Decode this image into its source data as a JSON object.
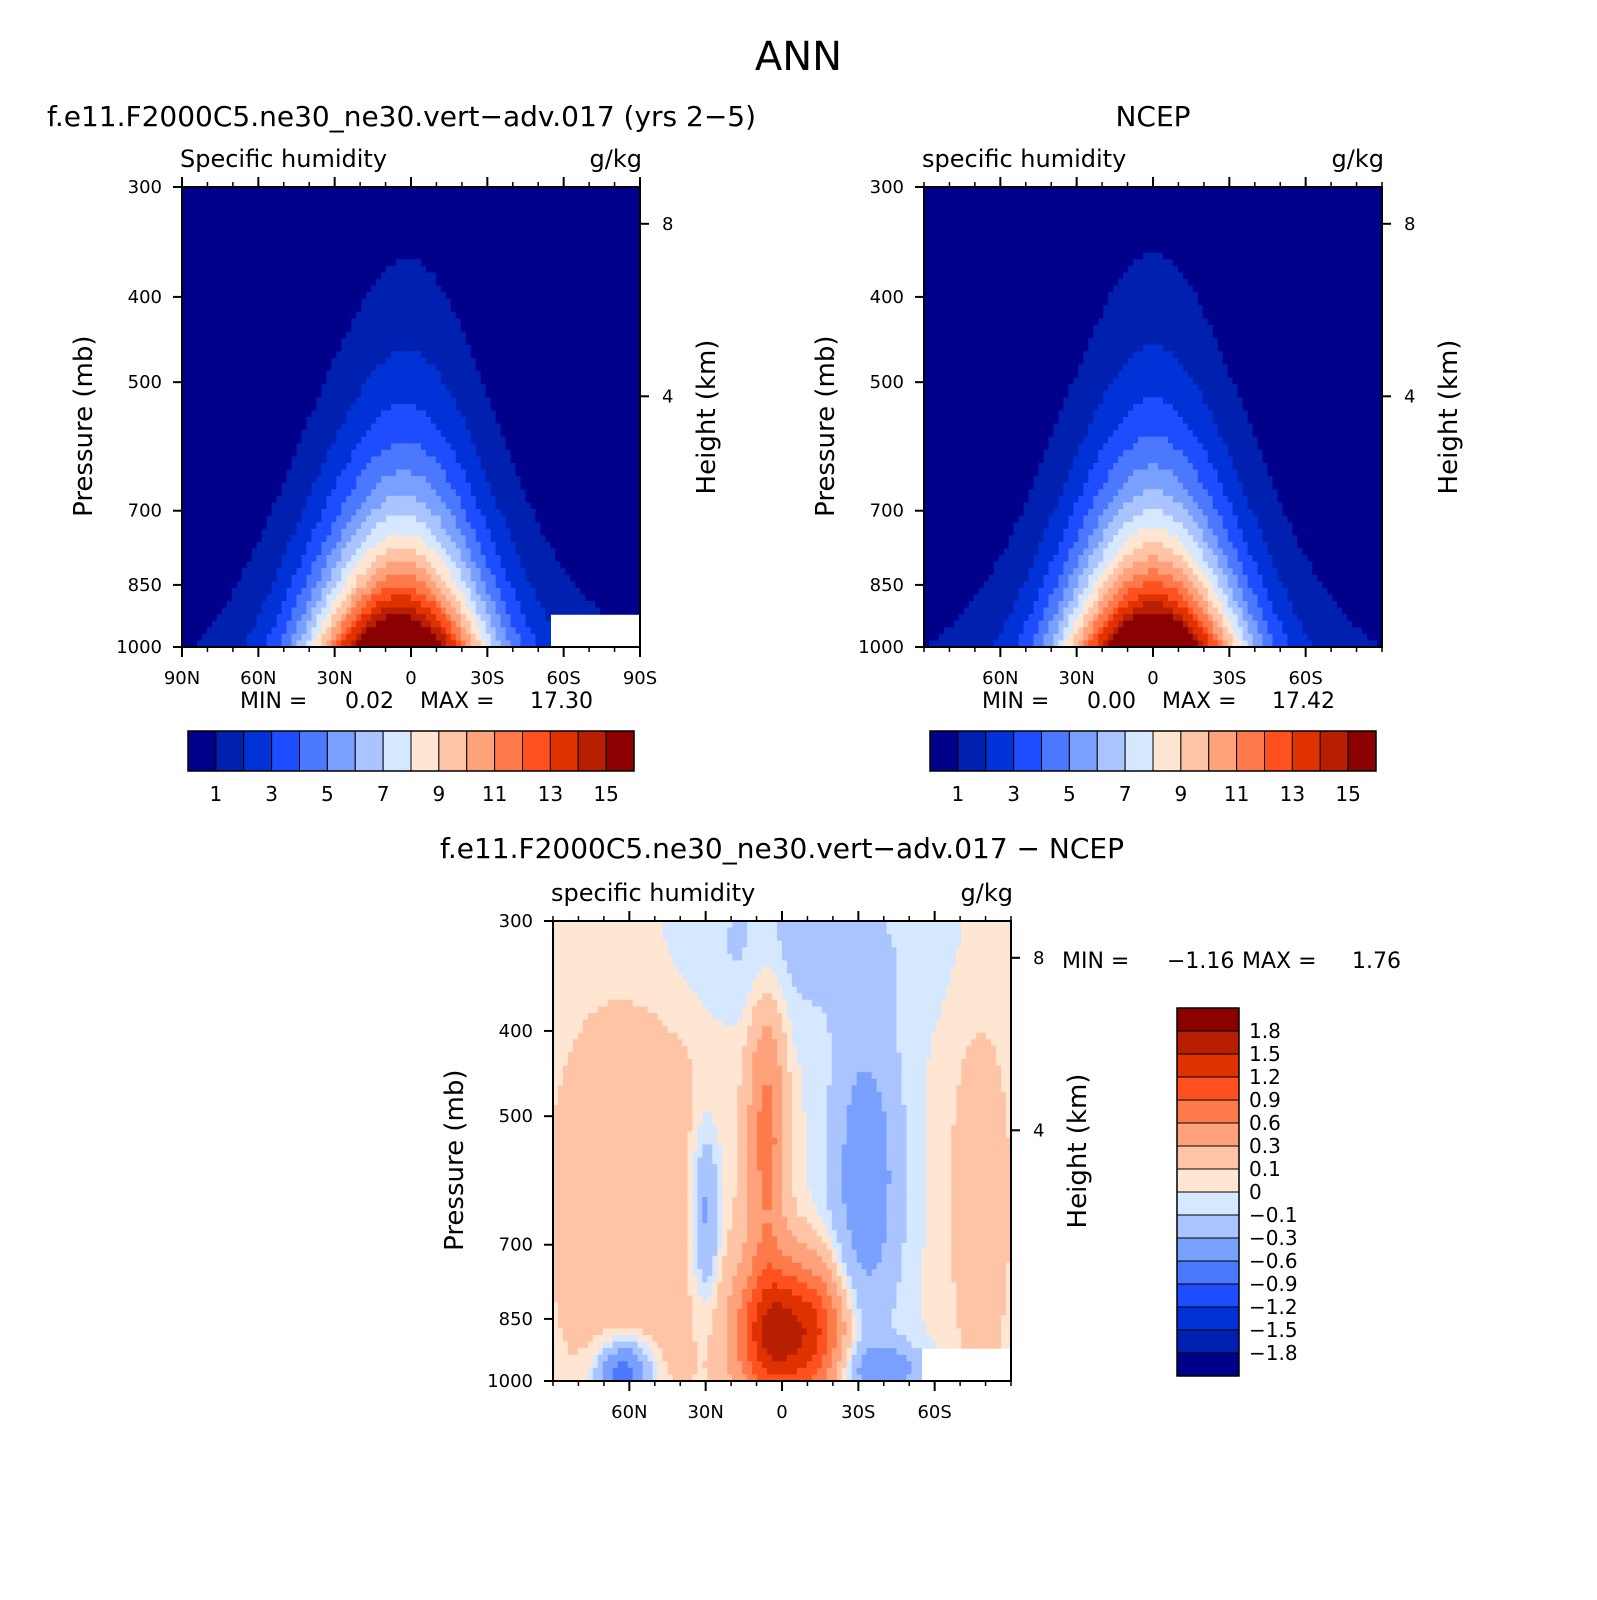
{
  "page": {
    "title": "ANN"
  },
  "chart_data": [
    {
      "type": "contour",
      "case_title": "f.e11.F2000C5.ne30_ne30.vert−adv.017 (yrs 2−5)",
      "left_label": "Specific humidity",
      "right_label": "g/kg",
      "ylabel": "Pressure (mb)",
      "y2label": "Height (km)",
      "xticks": [
        "90N",
        "60N",
        "30N",
        "0",
        "30S",
        "60S",
        "90S"
      ],
      "yticks": [
        "300",
        "400",
        "500",
        "700",
        "850",
        "1000"
      ],
      "y2ticks": [
        "8",
        "4"
      ],
      "min_label": "MIN =",
      "min_value": "0.02",
      "max_label": "MAX =",
      "max_value": "17.30",
      "levels": [
        1,
        2,
        3,
        4,
        5,
        6,
        7,
        8,
        9,
        10,
        11,
        12,
        13,
        14,
        15
      ],
      "colorbar_labels": [
        "1",
        "3",
        "5",
        "7",
        "9",
        "11",
        "13",
        "15"
      ],
      "colors": [
        "#00008b",
        "#0020b0",
        "#0032d8",
        "#1e4cff",
        "#4b78ff",
        "#7aa0ff",
        "#a9c4ff",
        "#d6e8ff",
        "#ffe6d2",
        "#ffc4a6",
        "#ffa27c",
        "#ff7a4a",
        "#ff5020",
        "#e03200",
        "#b81e00",
        "#8b0000"
      ],
      "peak_value": 17.3,
      "peak_lat": -5,
      "equator_value": 17.0,
      "missing_region": "south-polar-surface"
    },
    {
      "type": "contour",
      "case_title": "NCEP",
      "left_label": "specific humidity",
      "right_label": "g/kg",
      "ylabel": "Pressure (mb)",
      "y2label": "Height (km)",
      "xticks": [
        "60N",
        "30N",
        "0",
        "30S",
        "60S"
      ],
      "yticks": [
        "300",
        "400",
        "500",
        "700",
        "850",
        "1000"
      ],
      "y2ticks": [
        "8",
        "4"
      ],
      "min_label": "MIN =",
      "min_value": "0.00",
      "max_label": "MAX =",
      "max_value": "17.42",
      "levels": [
        1,
        2,
        3,
        4,
        5,
        6,
        7,
        8,
        9,
        10,
        11,
        12,
        13,
        14,
        15
      ],
      "colorbar_labels": [
        "1",
        "3",
        "5",
        "7",
        "9",
        "11",
        "13",
        "15"
      ],
      "colors": [
        "#00008b",
        "#0020b0",
        "#0032d8",
        "#1e4cff",
        "#4b78ff",
        "#7aa0ff",
        "#a9c4ff",
        "#d6e8ff",
        "#ffe6d2",
        "#ffc4a6",
        "#ffa27c",
        "#ff7a4a",
        "#ff5020",
        "#e03200",
        "#b81e00",
        "#8b0000"
      ],
      "peak_value": 17.42,
      "peak_lat": 0,
      "equator_value": 17.4
    },
    {
      "type": "contour",
      "case_title": "f.e11.F2000C5.ne30_ne30.vert−adv.017 − NCEP",
      "left_label": "specific humidity",
      "right_label": "g/kg",
      "ylabel": "Pressure (mb)",
      "y2label": "Height (km)",
      "xticks": [
        "60N",
        "30N",
        "0",
        "30S",
        "60S"
      ],
      "yticks": [
        "300",
        "400",
        "500",
        "700",
        "850",
        "1000"
      ],
      "y2ticks": [
        "8",
        "4"
      ],
      "min_label": "MIN =",
      "min_value": "−1.16",
      "max_label": "MAX =",
      "max_value": "1.76",
      "levels": [
        -1.8,
        -1.5,
        -1.2,
        -0.9,
        -0.6,
        -0.3,
        -0.1,
        0,
        0.1,
        0.3,
        0.6,
        0.9,
        1.2,
        1.5,
        1.8
      ],
      "colorbar_labels": [
        "1.8",
        "1.5",
        "1.2",
        "0.9",
        "0.6",
        "0.3",
        "0.1",
        "0",
        "−0.1",
        "−0.3",
        "−0.6",
        "−0.9",
        "−1.2",
        "−1.5",
        "−1.8"
      ],
      "colors": [
        "#8b0000",
        "#b81e00",
        "#e03200",
        "#ff5020",
        "#ff7a4a",
        "#ffa27c",
        "#ffc4a6",
        "#ffe6d2",
        "#d6e8ff",
        "#a9c4ff",
        "#7aa0ff",
        "#4b78ff",
        "#1e4cff",
        "#0032d8",
        "#0020b0",
        "#00008b"
      ],
      "min_value_num": -1.16,
      "max_value_num": 1.76,
      "missing_region": "south-polar-surface"
    }
  ]
}
